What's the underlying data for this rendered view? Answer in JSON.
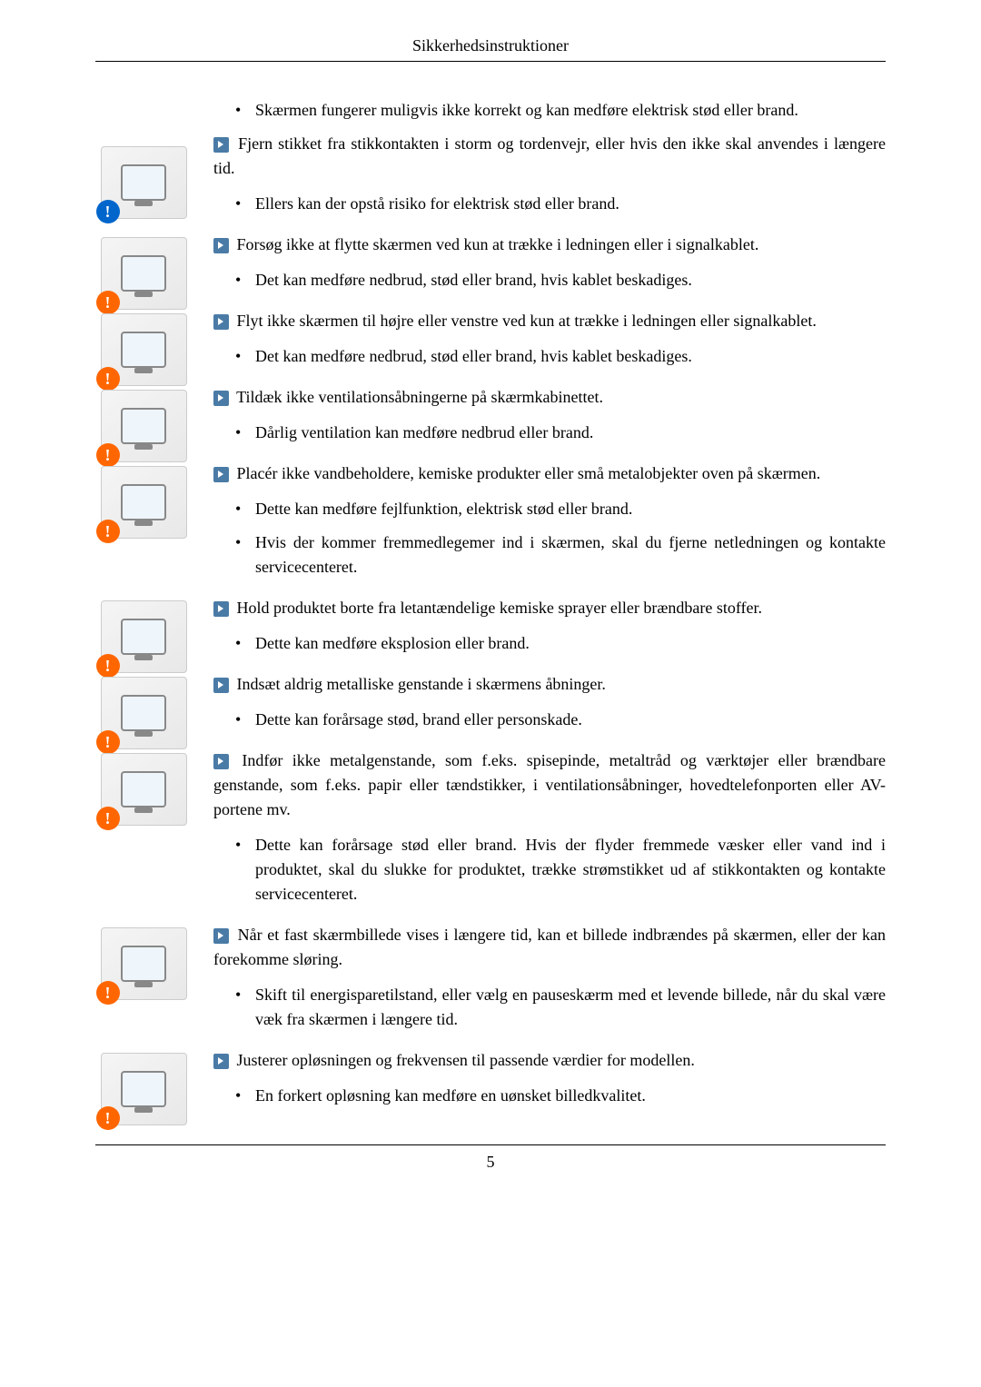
{
  "header": {
    "title": "Sikkerhedsinstruktioner"
  },
  "footer": {
    "page_number": "5"
  },
  "colors": {
    "arrow_bg": "#4a7ba6",
    "warn_orange": "#ff6600",
    "warn_blue": "#0066cc",
    "rule": "#000000",
    "text": "#000000"
  },
  "sections": [
    {
      "id": "sec0",
      "icon": {
        "badge": "blue"
      },
      "top_bullets": [
        "Skærmen fungerer muligvis ikke korrekt og kan medføre elektrisk stød eller brand."
      ],
      "lead": "Fjern stikket fra stikkontakten i storm og tordenvejr, eller hvis den ikke skal anvendes i længere tid.",
      "bullets": [
        "Ellers kan der opstå risiko for elektrisk stød eller brand."
      ]
    },
    {
      "id": "sec1",
      "icon": {
        "badge": "orange"
      },
      "lead": "Forsøg ikke at flytte skærmen ved kun at trække i ledningen eller i signalkablet.",
      "bullets": [
        "Det kan medføre nedbrud, stød eller brand, hvis kablet beskadiges."
      ]
    },
    {
      "id": "sec2",
      "icon": {
        "badge": "orange"
      },
      "lead": "Flyt ikke skærmen til højre eller venstre ved kun at trække i ledningen eller signalkablet.",
      "bullets": [
        "Det kan medføre nedbrud, stød eller brand, hvis kablet beskadiges."
      ]
    },
    {
      "id": "sec3",
      "icon": {
        "badge": "orange"
      },
      "lead": "Tildæk ikke ventilationsåbningerne på skærmkabinettet.",
      "bullets": [
        "Dårlig ventilation kan medføre nedbrud eller brand."
      ]
    },
    {
      "id": "sec4",
      "icon": {
        "badge": "orange"
      },
      "lead": "Placér ikke vandbeholdere, kemiske produkter eller små metalobjekter oven på skærmen.",
      "bullets": [
        "Dette kan medføre fejlfunktion, elektrisk stød eller brand.",
        "Hvis der kommer fremmedlegemer ind i skærmen, skal du fjerne netledningen og kontakte servicecenteret."
      ]
    },
    {
      "id": "sec5",
      "icon": {
        "badge": "orange"
      },
      "lead": "Hold produktet borte fra letantændelige kemiske sprayer eller brændbare stoffer.",
      "bullets": [
        "Dette kan medføre eksplosion eller brand."
      ]
    },
    {
      "id": "sec6",
      "icon": {
        "badge": "orange"
      },
      "lead": "Indsæt aldrig metalliske genstande i skærmens åbninger.",
      "bullets": [
        "Dette kan forårsage stød, brand eller personskade."
      ]
    },
    {
      "id": "sec7",
      "icon": {
        "badge": "orange"
      },
      "lead": "Indfør ikke metalgenstande, som f.eks. spisepinde, metaltråd og værktøjer eller brændbare genstande, som f.eks. papir eller tændstikker, i ventilationsåbninger, hovedtelefonporten eller AV-portene mv.",
      "bullets": [
        "Dette kan forårsage stød eller brand. Hvis der flyder fremmede væsker eller vand ind i produktet, skal du slukke for produktet, trække strømstikket ud af stikkontakten og kontakte servicecenteret."
      ]
    },
    {
      "id": "sec8",
      "icon": {
        "badge": "orange"
      },
      "lead": "Når et fast skærmbillede vises i længere tid, kan et billede indbrændes på skærmen, eller der kan forekomme sløring.",
      "bullets": [
        "Skift til energisparetilstand, eller vælg en pauseskærm med et levende billede, når du skal være væk fra skærmen i længere tid."
      ]
    },
    {
      "id": "sec9",
      "icon": {
        "badge": "orange"
      },
      "lead": "Justerer opløsningen og frekvensen til passende værdier for modellen.",
      "bullets": [
        "En forkert opløsning kan medføre en uønsket billedkvalitet."
      ]
    }
  ]
}
